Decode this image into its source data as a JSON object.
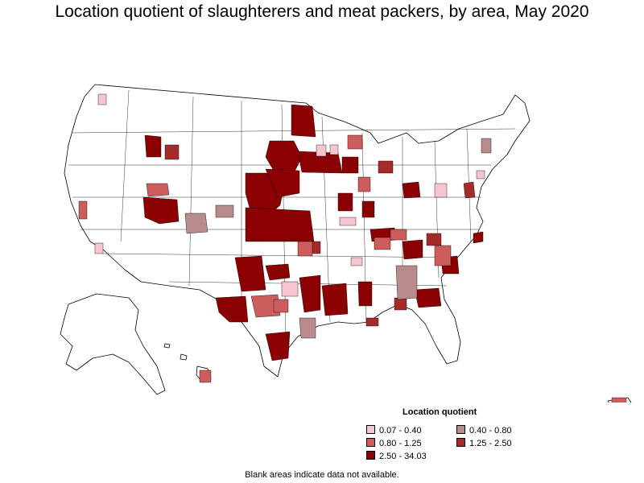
{
  "title": "Location quotient of slaughterers and meat packers, by area, May 2020",
  "legend": {
    "title": "Location quotient",
    "items": [
      {
        "label": "0.07 - 0.40",
        "color": "#f7c5cf"
      },
      {
        "label": "0.40 - 0.80",
        "color": "#b88c8c"
      },
      {
        "label": "0.80 - 1.25",
        "color": "#cd5c5c"
      },
      {
        "label": "1.25 - 2.50",
        "color": "#a52a2a"
      },
      {
        "label": "2.50 - 34.03",
        "color": "#8b0000"
      }
    ]
  },
  "footnote": "Blank areas indicate data not available.",
  "map": {
    "region": "United States",
    "insets": [
      "Alaska",
      "Hawaii",
      "Puerto Rico"
    ],
    "outline_color": "#000000",
    "blank_color": "#ffffff"
  }
}
